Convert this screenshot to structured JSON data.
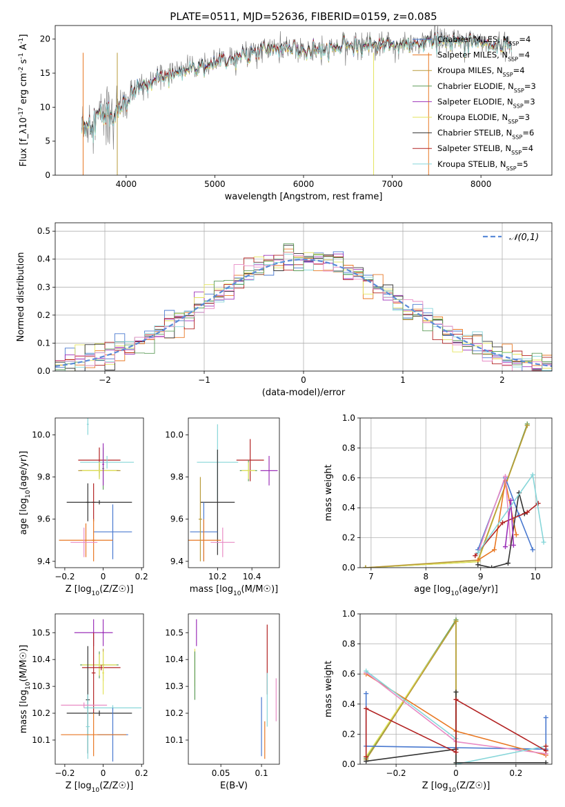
{
  "chart_data": [
    {
      "id": "spectrum",
      "type": "line",
      "title": "PLATE=0511, MJD=52636, FIBERID=0159, z=0.085",
      "xlabel": "wavelength [Angstrom, rest frame]",
      "ylabel": "Flux [f_λ10^-17 erg cm^-2 s^-1 A^-1]",
      "xlim": [
        3200,
        8800
      ],
      "ylim": [
        0,
        22
      ],
      "xticks": [
        4000,
        5000,
        6000,
        7000,
        8000
      ],
      "yticks": [
        0,
        5,
        10,
        15,
        20
      ],
      "continuum": {
        "x": [
          3500,
          3700,
          3900,
          4000,
          4100,
          4300,
          4500,
          4700,
          4900,
          5100,
          5300,
          5500,
          5700,
          5900,
          6100,
          6300,
          6500,
          6700,
          6900,
          7100,
          7300,
          7500,
          7700,
          7900,
          8100,
          8300
        ],
        "y": [
          7,
          9,
          9.5,
          10.5,
          12.5,
          14,
          15,
          15.8,
          16,
          17,
          17.8,
          18.5,
          18.6,
          18.8,
          18.2,
          18.6,
          19.0,
          19.3,
          19.3,
          19.1,
          19.4,
          19.8,
          19.8,
          20,
          19.3,
          19.2
        ]
      },
      "series": [
        {
          "name": "Chabrier MILES, N_SSP=4",
          "color": "#4878cf"
        },
        {
          "name": "Salpeter MILES, N_SSP=4",
          "color": "#e87722"
        },
        {
          "name": "Kroupa MILES, N_SSP=4",
          "color": "#b89a3a"
        },
        {
          "name": "Chabrier ELODIE, N_SSP=3",
          "color": "#5d9c59"
        },
        {
          "name": "Salpeter ELODIE, N_SSP=3",
          "color": "#9b30b8"
        },
        {
          "name": "Kroupa ELODIE, N_SSP=3",
          "color": "#e3e35a"
        },
        {
          "name": "Chabrier STELIB, N_SSP=6",
          "color": "#333333"
        },
        {
          "name": "Salpeter STELIB, N_SSP=4",
          "color": "#b22222"
        },
        {
          "name": "Kroupa STELIB, N_SSP=5",
          "color": "#87d6d9"
        }
      ],
      "legend_position": "right"
    },
    {
      "id": "residuals",
      "type": "line",
      "xlabel": "(data-model)/error",
      "ylabel": "Normed distribution",
      "xlim": [
        -2.5,
        2.5
      ],
      "ylim": [
        0,
        0.53
      ],
      "xticks": [
        -2,
        -1,
        0,
        1,
        2
      ],
      "yticks": [
        0.0,
        0.1,
        0.2,
        0.3,
        0.4,
        0.5
      ],
      "grid": true,
      "bin_width": 0.1,
      "reference_curve": {
        "name": "𝒩(0,1)",
        "mean": 0,
        "sigma": 1,
        "style": "dashed",
        "color": "#5b8bd8"
      },
      "histogram_colors": [
        "#4878cf",
        "#e87722",
        "#9b30b8",
        "#e3e35a",
        "#333333",
        "#b22222",
        "#87d6d9",
        "#5d9c59",
        "#e88bc5"
      ],
      "legend_position": "top-right"
    },
    {
      "id": "age-vs-Z",
      "type": "scatter",
      "xlabel": "Z [log10(Z/Z☉)]",
      "ylabel": "age [log10(age/yr)]",
      "xlim": [
        -0.25,
        0.21
      ],
      "ylim": [
        9.37,
        10.08
      ],
      "xticks": [
        -0.2,
        0.0,
        0.2
      ],
      "yticks": [
        9.4,
        9.6,
        9.8,
        10.0
      ],
      "points": [
        {
          "x": -0.02,
          "y": 9.88,
          "xerr": 0.11,
          "yerr": 0.06,
          "color": "#b22222"
        },
        {
          "x": 0.02,
          "y": 9.87,
          "xerr": 0.14,
          "yerr": 0.03,
          "color": "#87d6d9"
        },
        {
          "x": -0.08,
          "y": 10.05,
          "xerr": 0.005,
          "yerr": 0.05,
          "color": "#87d6d9"
        },
        {
          "x": -0.02,
          "y": 9.83,
          "xerr": 0.1,
          "yerr": 0.04,
          "color": "#5d9c59"
        },
        {
          "x": -0.02,
          "y": 9.83,
          "xerr": 0.11,
          "yerr": 0.03,
          "color": "#b89a3a"
        },
        {
          "x": -0.02,
          "y": 9.83,
          "xerr": 0.09,
          "yerr": 0.04,
          "color": "#e3e35a"
        },
        {
          "x": 0.0,
          "y": 9.84,
          "xerr": 0.005,
          "yerr": 0.1,
          "color": "#5d9c59"
        },
        {
          "x": 0.0,
          "y": 9.86,
          "xerr": 0.005,
          "yerr": 0.1,
          "color": "#9b30b8"
        },
        {
          "x": -0.05,
          "y": 9.68,
          "xerr": 0.01,
          "yerr": 0.09,
          "color": "#b22222"
        },
        {
          "x": -0.08,
          "y": 9.68,
          "xerr": 0.01,
          "yerr": 0.09,
          "color": "#333333"
        },
        {
          "x": -0.02,
          "y": 9.68,
          "xerr": 0.17,
          "yerr": 0.01,
          "color": "#333333"
        },
        {
          "x": 0.05,
          "y": 9.54,
          "xerr": 0.1,
          "yerr": 0.13,
          "color": "#4878cf"
        },
        {
          "x": -0.09,
          "y": 9.5,
          "xerr": 0.14,
          "yerr": 0.08,
          "color": "#e87722"
        },
        {
          "x": -0.05,
          "y": 9.5,
          "xerr": 0.01,
          "yerr": 0.1,
          "color": "#e87722"
        },
        {
          "x": -0.1,
          "y": 9.49,
          "xerr": 0.07,
          "yerr": 0.07,
          "color": "#e88bc5"
        }
      ]
    },
    {
      "id": "age-vs-mass",
      "type": "scatter",
      "xlabel": "mass [log10(M/M☉)]",
      "ylabel": "",
      "xlim": [
        10.03,
        10.56
      ],
      "ylim": [
        9.37,
        10.08
      ],
      "xticks": [
        10.2,
        10.4
      ],
      "yticks": [
        9.4,
        9.6,
        9.8,
        10.0
      ],
      "points": [
        {
          "x": 10.39,
          "y": 9.88,
          "xerr": 0.08,
          "yerr": 0.1,
          "color": "#b22222"
        },
        {
          "x": 10.38,
          "y": 9.83,
          "xerr": 0.05,
          "yerr": 0.05,
          "color": "#5d9c59"
        },
        {
          "x": 10.38,
          "y": 9.83,
          "xerr": 0.04,
          "yerr": 0.04,
          "color": "#e3e35a"
        },
        {
          "x": 10.5,
          "y": 9.83,
          "xerr": 0.05,
          "yerr": 0.07,
          "color": "#9b30b8"
        },
        {
          "x": 10.2,
          "y": 9.87,
          "xerr": 0.12,
          "yerr": 0.18,
          "color": "#87d6d9"
        },
        {
          "x": 10.2,
          "y": 9.68,
          "xerr": 0.1,
          "yerr": 0.25,
          "color": "#333333"
        },
        {
          "x": 10.12,
          "y": 9.54,
          "xerr": 0.08,
          "yerr": 0.14,
          "color": "#4878cf"
        },
        {
          "x": 10.12,
          "y": 9.5,
          "xerr": 0.1,
          "yerr": 0.1,
          "color": "#e87722"
        },
        {
          "x": 10.1,
          "y": 9.6,
          "xerr": 0.01,
          "yerr": 0.2,
          "color": "#b89a3a"
        },
        {
          "x": 10.23,
          "y": 9.49,
          "xerr": 0.07,
          "yerr": 0.07,
          "color": "#e88bc5"
        }
      ]
    },
    {
      "id": "massweight-vs-age",
      "type": "line",
      "xlabel": "age [log10(age/yr)]",
      "ylabel": "mass weight",
      "xlim": [
        6.8,
        10.3
      ],
      "ylim": [
        0,
        1.0
      ],
      "xticks": [
        7,
        8,
        9,
        10
      ],
      "yticks": [
        0.0,
        0.2,
        0.4,
        0.6,
        0.8,
        1.0
      ],
      "grid": true,
      "series": [
        {
          "color": "#5d9c59",
          "x": [
            6.9,
            8.95,
            9.85
          ],
          "y": [
            0.0,
            0.04,
            0.96
          ]
        },
        {
          "color": "#e3e35a",
          "x": [
            6.9,
            8.95,
            9.85
          ],
          "y": [
            0.0,
            0.04,
            0.95
          ]
        },
        {
          "color": "#b89a3a",
          "x": [
            6.9,
            8.95,
            9.85
          ],
          "y": [
            0.0,
            0.05,
            0.95
          ]
        },
        {
          "color": "#4878cf",
          "x": [
            8.95,
            9.45,
            9.7,
            9.95
          ],
          "y": [
            0.12,
            0.6,
            0.35,
            0.12
          ]
        },
        {
          "color": "#e87722",
          "x": [
            8.95,
            9.25,
            9.45,
            9.65
          ],
          "y": [
            0.05,
            0.12,
            0.58,
            0.22
          ]
        },
        {
          "color": "#e88bc5",
          "x": [
            8.95,
            9.45,
            9.55
          ],
          "y": [
            0.1,
            0.61,
            0.15
          ]
        },
        {
          "color": "#333333",
          "x": [
            8.95,
            9.2,
            9.5,
            9.7,
            9.8
          ],
          "y": [
            0.02,
            0.0,
            0.03,
            0.5,
            0.36
          ]
        },
        {
          "color": "#b22222",
          "x": [
            8.9,
            9.4,
            9.85,
            10.05
          ],
          "y": [
            0.08,
            0.3,
            0.37,
            0.43
          ]
        },
        {
          "color": "#9b30b8",
          "x": [
            9.45,
            9.55,
            9.6
          ],
          "y": [
            0.14,
            0.45,
            0.15
          ]
        },
        {
          "color": "#87d6d9",
          "x": [
            8.95,
            9.95,
            10.15
          ],
          "y": [
            0.1,
            0.62,
            0.17
          ]
        }
      ]
    },
    {
      "id": "mass-vs-Z",
      "type": "scatter",
      "xlabel": "Z [log10(Z/Z☉)]",
      "ylabel": "mass [log10(M/M☉)]",
      "xlim": [
        -0.25,
        0.21
      ],
      "ylim": [
        10.01,
        10.57
      ],
      "xticks": [
        -0.2,
        0.0,
        0.2
      ],
      "yticks": [
        10.1,
        10.2,
        10.3,
        10.4,
        10.5
      ],
      "points": [
        {
          "x": -0.05,
          "y": 10.5,
          "xerr": 0.1,
          "yerr": 0.05,
          "color": "#9b30b8"
        },
        {
          "x": -0.02,
          "y": 10.38,
          "xerr": 0.1,
          "yerr": 0.05,
          "color": "#5d9c59"
        },
        {
          "x": -0.02,
          "y": 10.38,
          "xerr": 0.09,
          "yerr": 0.04,
          "color": "#e3e35a"
        },
        {
          "x": 0.0,
          "y": 10.38,
          "xerr": 0.005,
          "yerr": 0.06,
          "color": "#b89a3a"
        },
        {
          "x": 0.0,
          "y": 10.5,
          "xerr": 0.005,
          "yerr": 0.05,
          "color": "#9b30b8"
        },
        {
          "x": -0.01,
          "y": 10.37,
          "xerr": 0.1,
          "yerr": 0.01,
          "color": "#b22222"
        },
        {
          "x": -0.05,
          "y": 10.35,
          "xerr": 0.01,
          "yerr": 0.15,
          "color": "#b22222"
        },
        {
          "x": 0.0,
          "y": 10.35,
          "xerr": 0.005,
          "yerr": 0.08,
          "color": "#e3e35a"
        },
        {
          "x": 0.05,
          "y": 10.22,
          "xerr": 0.15,
          "yerr": 0.01,
          "color": "#87d6d9"
        },
        {
          "x": -0.08,
          "y": 10.25,
          "xerr": 0.01,
          "yerr": 0.2,
          "color": "#333333"
        },
        {
          "x": -0.02,
          "y": 10.2,
          "xerr": 0.17,
          "yerr": 0.01,
          "color": "#333333"
        },
        {
          "x": -0.08,
          "y": 10.15,
          "xerr": 0.01,
          "yerr": 0.12,
          "color": "#87d6d9"
        },
        {
          "x": 0.05,
          "y": 10.12,
          "xerr": 0.08,
          "yerr": 0.1,
          "color": "#4878cf"
        },
        {
          "x": -0.1,
          "y": 10.23,
          "xerr": 0.12,
          "yerr": 0.01,
          "color": "#e88bc5"
        },
        {
          "x": -0.05,
          "y": 10.12,
          "xerr": 0.17,
          "yerr": 0.08,
          "color": "#e87722"
        }
      ]
    },
    {
      "id": "mass-vs-EBV",
      "type": "scatter",
      "xlabel": "E(B-V)",
      "ylabel": "",
      "xlim": [
        0.01,
        0.122
      ],
      "ylim": [
        10.01,
        10.57
      ],
      "xticks": [
        0.05,
        0.1
      ],
      "yticks": [
        10.1,
        10.2,
        10.3,
        10.4,
        10.5
      ],
      "points": [
        {
          "x": 0.02,
          "y": 10.5,
          "xerr": 0.0,
          "yerr": 0.05,
          "color": "#9b30b8"
        },
        {
          "x": 0.018,
          "y": 10.37,
          "xerr": 0.0,
          "yerr": 0.07,
          "color": "#e3e35a"
        },
        {
          "x": 0.018,
          "y": 10.34,
          "xerr": 0.0,
          "yerr": 0.09,
          "color": "#5d9c59"
        },
        {
          "x": 0.107,
          "y": 10.4,
          "xerr": 0.0,
          "yerr": 0.13,
          "color": "#b22222"
        },
        {
          "x": 0.107,
          "y": 10.25,
          "xerr": 0.0,
          "yerr": 0.1,
          "color": "#87d6d9"
        },
        {
          "x": 0.1,
          "y": 10.15,
          "xerr": 0.0,
          "yerr": 0.11,
          "color": "#4878cf"
        },
        {
          "x": 0.104,
          "y": 10.1,
          "xerr": 0.0,
          "yerr": 0.07,
          "color": "#e87722"
        },
        {
          "x": 0.118,
          "y": 10.25,
          "xerr": 0.0,
          "yerr": 0.08,
          "color": "#e88bc5"
        }
      ]
    },
    {
      "id": "massweight-vs-Z",
      "type": "line",
      "xlabel": "Z [log10(Z/Z☉)]",
      "ylabel": "mass weight",
      "xlim": [
        -0.32,
        0.32
      ],
      "ylim": [
        0,
        1.0
      ],
      "xticks": [
        -0.2,
        0.0,
        0.2
      ],
      "yticks": [
        0.0,
        0.2,
        0.4,
        0.6,
        0.8,
        1.0
      ],
      "grid": true,
      "series": [
        {
          "color": "#5d9c59",
          "x": [
            -0.3,
            0.0,
            0.0
          ],
          "y": [
            0.04,
            0.96,
            0.0
          ]
        },
        {
          "color": "#e3e35a",
          "x": [
            -0.3,
            0.0,
            0.0
          ],
          "y": [
            0.05,
            0.95,
            0.0
          ]
        },
        {
          "color": "#b89a3a",
          "x": [
            -0.3,
            0.0,
            0.0
          ],
          "y": [
            0.03,
            0.95,
            0.0
          ]
        },
        {
          "color": "#4878cf",
          "x": [
            -0.3,
            -0.3,
            0.0,
            0.3,
            0.3
          ],
          "y": [
            0.47,
            0.12,
            0.11,
            0.1,
            0.31
          ]
        },
        {
          "color": "#e87722",
          "x": [
            -0.3,
            0.0,
            0.3
          ],
          "y": [
            0.6,
            0.22,
            0.06
          ]
        },
        {
          "color": "#e88bc5",
          "x": [
            -0.3,
            0.0,
            0.3
          ],
          "y": [
            0.61,
            0.15,
            0.07
          ]
        },
        {
          "color": "#87d6d9",
          "x": [
            -0.3,
            0.0,
            0.0,
            0.3
          ],
          "y": [
            0.62,
            0.17,
            0.0,
            0.12
          ]
        },
        {
          "color": "#333333",
          "x": [
            -0.3,
            0.0,
            0.0,
            0.0,
            0.3
          ],
          "y": [
            0.02,
            0.1,
            0.48,
            0.01,
            0.01
          ]
        },
        {
          "color": "#b22222",
          "x": [
            -0.3,
            -0.3,
            0.0,
            0.0,
            0.3,
            0.3
          ],
          "y": [
            0.05,
            0.37,
            0.08,
            0.43,
            0.09,
            0.12
          ]
        }
      ]
    }
  ]
}
